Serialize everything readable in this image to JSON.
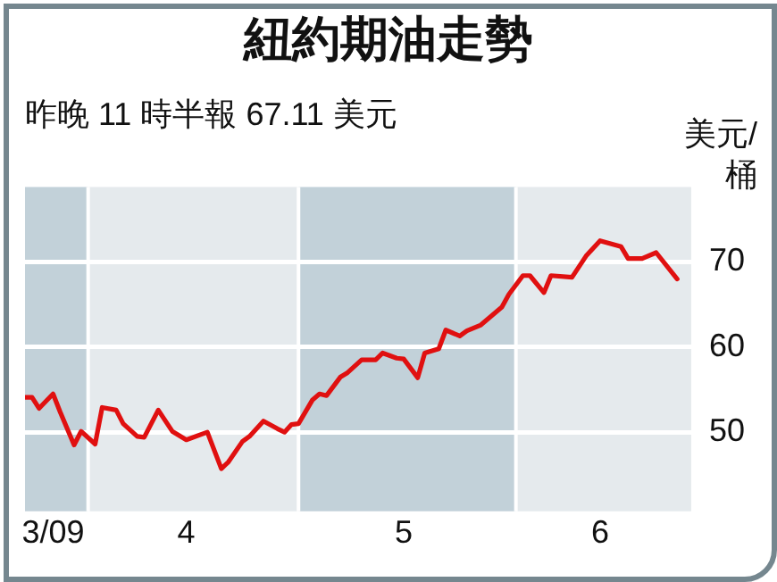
{
  "chart_data": {
    "type": "line",
    "title": "紐約期油走勢",
    "subtitle": "昨晚 11 時半報 67.11 美元",
    "ylabel": "美元/桶",
    "x": [
      "2009-03-23",
      "2009-03-24",
      "2009-03-25",
      "2009-03-27",
      "2009-03-28",
      "2009-03-30",
      "2009-03-31",
      "2009-04-02",
      "2009-04-03",
      "2009-04-05",
      "2009-04-06",
      "2009-04-08",
      "2009-04-09",
      "2009-04-11",
      "2009-04-13",
      "2009-04-15",
      "2009-04-18",
      "2009-04-20",
      "2009-04-21",
      "2009-04-23",
      "2009-04-24",
      "2009-04-26",
      "2009-04-28",
      "2009-04-29",
      "2009-04-30",
      "2009-05-01",
      "2009-05-03",
      "2009-05-04",
      "2009-05-05",
      "2009-05-07",
      "2009-05-08",
      "2009-05-10",
      "2009-05-12",
      "2009-05-13",
      "2009-05-15",
      "2009-05-16",
      "2009-05-18",
      "2009-05-19",
      "2009-05-21",
      "2009-05-22",
      "2009-05-24",
      "2009-05-25",
      "2009-05-27",
      "2009-05-30",
      "2009-05-31",
      "2009-06-02",
      "2009-06-03",
      "2009-06-05",
      "2009-06-06",
      "2009-06-09",
      "2009-06-11",
      "2009-06-13",
      "2009-06-16",
      "2009-06-17",
      "2009-06-19",
      "2009-06-21",
      "2009-06-24"
    ],
    "series": [
      {
        "color": "#e01010",
        "values": [
          54.1,
          54.1,
          52.8,
          54.5,
          52.4,
          48.5,
          50.1,
          48.6,
          52.9,
          52.6,
          51.0,
          49.5,
          49.4,
          52.6,
          50.1,
          49.1,
          50.0,
          45.7,
          46.5,
          48.9,
          49.5,
          51.3,
          50.4,
          50.0,
          50.9,
          51.0,
          53.8,
          54.5,
          54.3,
          56.5,
          57.0,
          58.5,
          58.5,
          59.3,
          58.7,
          58.6,
          56.4,
          59.3,
          59.8,
          62.0,
          61.3,
          61.9,
          62.6,
          64.7,
          66.2,
          68.4,
          68.4,
          66.4,
          68.4,
          68.2,
          70.7,
          72.5,
          71.8,
          70.4,
          70.4,
          71.1,
          68.0
        ]
      }
    ],
    "xlim": [
      "2009-03-23",
      "2009-06-26"
    ],
    "xticks": [
      {
        "value": "2009-03-27",
        "label": "3/09"
      },
      {
        "value": "2009-04-15",
        "label": "4"
      },
      {
        "value": "2009-05-16",
        "label": "5"
      },
      {
        "value": "2009-06-13",
        "label": "6"
      }
    ],
    "ylim": [
      40.7,
      78.8
    ],
    "yticks": [
      50,
      60,
      70
    ],
    "grid": "y",
    "legend": false,
    "marker": "none",
    "line_style": "solid",
    "bands": [
      {
        "axis": "x",
        "from": "2009-03-23",
        "to": "2009-04-01",
        "color": "#c2d1d9"
      },
      {
        "axis": "x",
        "from": "2009-04-01",
        "to": "2009-05-01",
        "color": "#e5eaed"
      },
      {
        "axis": "x",
        "from": "2009-05-01",
        "to": "2009-06-01",
        "color": "#c2d1d9"
      },
      {
        "axis": "x",
        "from": "2009-06-01",
        "to": "2009-06-26",
        "color": "#e5eaed"
      }
    ]
  }
}
